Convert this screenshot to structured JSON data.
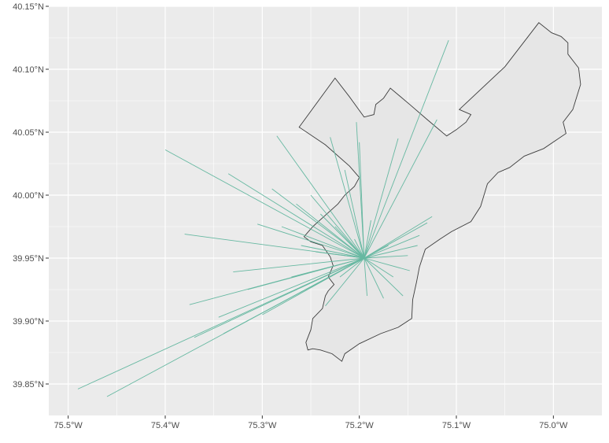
{
  "chart_data": {
    "type": "map",
    "title": "",
    "xlabel": "",
    "ylabel": "",
    "xlim": [
      -75.52,
      -74.95
    ],
    "ylim": [
      39.825,
      40.15
    ],
    "grid": true,
    "colors": {
      "panel_background": "#ebebeb",
      "grid_line": "#ffffff",
      "city_fill": "#e6e6e6",
      "city_outline": "#3c3c3c",
      "flow_line": "#66b8a1",
      "tick_text": "#4d4d4d"
    },
    "x_ticks": [
      {
        "value": -75.5,
        "label": "75.5°W"
      },
      {
        "value": -75.4,
        "label": "75.4°W"
      },
      {
        "value": -75.3,
        "label": "75.3°W"
      },
      {
        "value": -75.2,
        "label": "75.2°W"
      },
      {
        "value": -75.1,
        "label": "75.1°W"
      },
      {
        "value": -75.0,
        "label": "75.0°W"
      }
    ],
    "y_ticks": [
      {
        "value": 39.85,
        "label": "39.85°N"
      },
      {
        "value": 39.9,
        "label": "39.90°N"
      },
      {
        "value": 39.95,
        "label": "39.95°N"
      },
      {
        "value": 40.0,
        "label": "40.00°N"
      },
      {
        "value": 40.05,
        "label": "40.05°N"
      },
      {
        "value": 40.1,
        "label": "40.10°N"
      },
      {
        "value": 40.15,
        "label": "40.15°N"
      }
    ],
    "boundary": [
      [
        -75.262,
        40.054
      ],
      [
        -75.225,
        40.093
      ],
      [
        -75.21,
        40.078
      ],
      [
        -75.195,
        40.062
      ],
      [
        -75.185,
        40.064
      ],
      [
        -75.183,
        40.072
      ],
      [
        -75.175,
        40.077
      ],
      [
        -75.168,
        40.085
      ],
      [
        -75.148,
        40.072
      ],
      [
        -75.13,
        40.06
      ],
      [
        -75.11,
        40.047
      ],
      [
        -75.1,
        40.052
      ],
      [
        -75.09,
        40.058
      ],
      [
        -75.085,
        40.064
      ],
      [
        -75.097,
        40.068
      ],
      [
        -75.05,
        40.102
      ],
      [
        -75.015,
        40.137
      ],
      [
        -75.002,
        40.129
      ],
      [
        -74.992,
        40.126
      ],
      [
        -74.985,
        40.121
      ],
      [
        -74.985,
        40.112
      ],
      [
        -74.974,
        40.101
      ],
      [
        -74.972,
        40.088
      ],
      [
        -74.98,
        40.068
      ],
      [
        -74.99,
        40.058
      ],
      [
        -74.987,
        40.049
      ],
      [
        -75.01,
        40.037
      ],
      [
        -75.03,
        40.031
      ],
      [
        -75.045,
        40.022
      ],
      [
        -75.057,
        40.018
      ],
      [
        -75.068,
        40.009
      ],
      [
        -75.075,
        39.991
      ],
      [
        -75.085,
        39.979
      ],
      [
        -75.105,
        39.971
      ],
      [
        -75.117,
        39.965
      ],
      [
        -75.132,
        39.957
      ],
      [
        -75.138,
        39.943
      ],
      [
        -75.141,
        39.931
      ],
      [
        -75.145,
        39.917
      ],
      [
        -75.146,
        39.902
      ],
      [
        -75.16,
        39.895
      ],
      [
        -75.178,
        39.89
      ],
      [
        -75.2,
        39.882
      ],
      [
        -75.215,
        39.874
      ],
      [
        -75.218,
        39.868
      ],
      [
        -75.228,
        39.874
      ],
      [
        -75.24,
        39.877
      ],
      [
        -75.248,
        39.878
      ],
      [
        -75.253,
        39.877
      ],
      [
        -75.255,
        39.883
      ],
      [
        -75.25,
        39.893
      ],
      [
        -75.248,
        39.902
      ],
      [
        -75.238,
        39.91
      ],
      [
        -75.235,
        39.92
      ],
      [
        -75.232,
        39.924
      ],
      [
        -75.226,
        39.929
      ],
      [
        -75.232,
        39.935
      ],
      [
        -75.227,
        39.944
      ],
      [
        -75.23,
        39.951
      ],
      [
        -75.238,
        39.96
      ],
      [
        -75.25,
        39.963
      ],
      [
        -75.257,
        39.967
      ],
      [
        -75.248,
        39.975
      ],
      [
        -75.235,
        39.984
      ],
      [
        -75.222,
        39.993
      ],
      [
        -75.215,
        40.0
      ],
      [
        -75.205,
        40.007
      ],
      [
        -75.2,
        40.014
      ],
      [
        -75.21,
        40.023
      ],
      [
        -75.235,
        40.04
      ],
      [
        -75.262,
        40.054
      ]
    ],
    "hub": [
      -75.195,
      39.95
    ],
    "flows": [
      [
        -75.49,
        39.846
      ],
      [
        -75.46,
        39.84
      ],
      [
        -75.4,
        40.036
      ],
      [
        -75.38,
        39.969
      ],
      [
        -75.375,
        39.913
      ],
      [
        -75.37,
        39.887
      ],
      [
        -75.345,
        39.903
      ],
      [
        -75.34,
        39.89
      ],
      [
        -75.335,
        40.017
      ],
      [
        -75.33,
        39.939
      ],
      [
        -75.315,
        39.925
      ],
      [
        -75.305,
        39.977
      ],
      [
        -75.3,
        39.905
      ],
      [
        -75.29,
        40.005
      ],
      [
        -75.285,
        40.047
      ],
      [
        -75.28,
        39.975
      ],
      [
        -75.27,
        39.935
      ],
      [
        -75.265,
        39.993
      ],
      [
        -75.26,
        39.96
      ],
      [
        -75.255,
        39.925
      ],
      [
        -75.25,
        40.0
      ],
      [
        -75.245,
        39.955
      ],
      [
        -75.24,
        39.985
      ],
      [
        -75.235,
        39.912
      ],
      [
        -75.23,
        40.046
      ],
      [
        -75.225,
        39.975
      ],
      [
        -75.22,
        39.935
      ],
      [
        -75.215,
        40.02
      ],
      [
        -75.205,
        39.965
      ],
      [
        -75.203,
        40.058
      ],
      [
        -75.2,
        40.042
      ],
      [
        -75.192,
        39.92
      ],
      [
        -75.188,
        39.98
      ],
      [
        -75.175,
        39.918
      ],
      [
        -75.17,
        39.96
      ],
      [
        -75.165,
        39.935
      ],
      [
        -75.16,
        40.045
      ],
      [
        -75.155,
        39.92
      ],
      [
        -75.15,
        39.952
      ],
      [
        -75.148,
        39.94
      ],
      [
        -75.14,
        39.96
      ],
      [
        -75.138,
        39.968
      ],
      [
        -75.13,
        39.978
      ],
      [
        -75.125,
        39.983
      ],
      [
        -75.12,
        40.06
      ],
      [
        -75.108,
        40.123
      ]
    ]
  }
}
